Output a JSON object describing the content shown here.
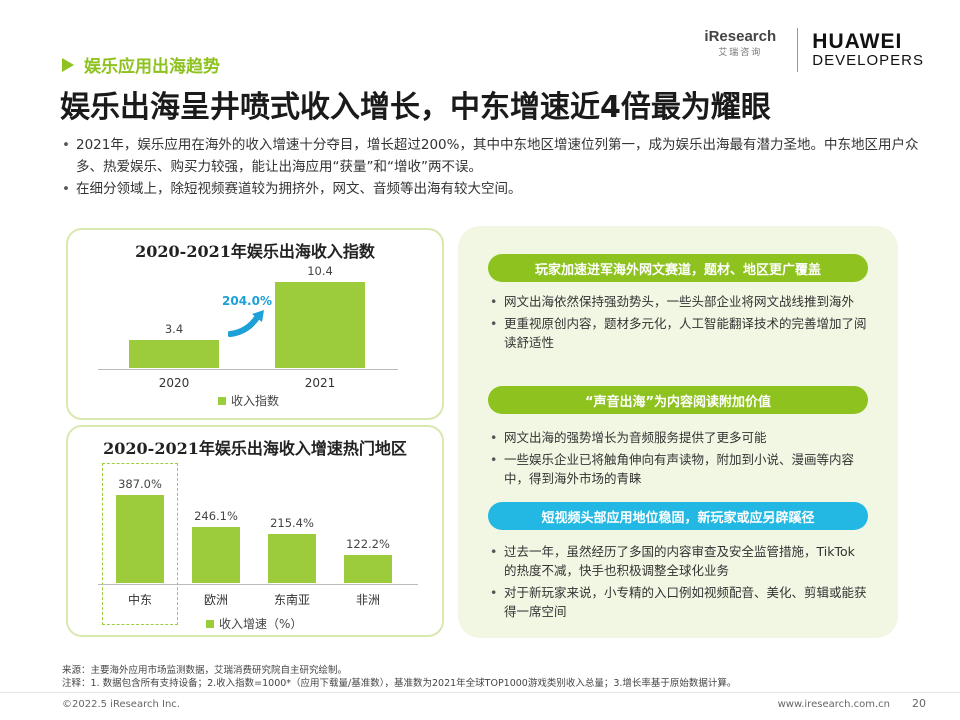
{
  "section": {
    "label": "娱乐应用出海趋势"
  },
  "logos": {
    "iresearch_name": "iResearch",
    "iresearch_sub": "艾瑞咨询",
    "huawei_line1": "HUAWEI",
    "huawei_line2": "DEVELOPERS"
  },
  "title": "娱乐出海呈井喷式收入增长，中东增速近4倍最为耀眼",
  "intro": [
    "2021年，娱乐应用在海外的收入增速十分夺目，增长超过200%，其中中东地区增速位列第一，成为娱乐出海最有潜力圣地。中东地区用户众多、热爱娱乐、购买力较强，能让出海应用“获量”和“增收”两不误。",
    "在细分领域上，除短视频赛道较为拥挤外，网文、音频等出海有较大空间。"
  ],
  "chart_data": [
    {
      "type": "bar",
      "title": "2020-2021年娱乐出海收入指数",
      "categories": [
        "2020",
        "2021"
      ],
      "values": [
        3.4,
        10.4
      ],
      "value_labels": [
        "3.4",
        "10.4"
      ],
      "legend": "收入指数",
      "annotation": "204.0%",
      "ylim": [
        0,
        10.4
      ]
    },
    {
      "type": "bar",
      "title": "2020-2021年娱乐出海收入增速热门地区",
      "categories": [
        "中东",
        "欧洲",
        "东南亚",
        "非洲"
      ],
      "values": [
        387.0,
        246.1,
        215.4,
        122.2
      ],
      "value_labels": [
        "387.0%",
        "246.1%",
        "215.4%",
        "122.2%"
      ],
      "legend": "收入增速（%）",
      "ylim": [
        0,
        387.0
      ]
    }
  ],
  "right_panel": {
    "sections": [
      {
        "heading": "玩家加速进军海外网文赛道，题材、地区更广覆盖",
        "color": "#8dc21f",
        "items": [
          "网文出海依然保持强劲势头，一些头部企业将网文战线推到海外",
          "更重视原创内容，题材多元化，人工智能翻译技术的完善增加了阅读舒适性"
        ]
      },
      {
        "heading": "“声音出海”为内容阅读附加价值",
        "color": "#8dc21f",
        "items": [
          "网文出海的强势增长为音频服务提供了更多可能",
          "一些娱乐企业已将触角伸向有声读物，附加到小说、漫画等内容中，得到海外市场的青睐"
        ]
      },
      {
        "heading": "短视频头部应用地位稳固，新玩家或应另辟蹊径",
        "color": "#22b8e3",
        "items": [
          "过去一年，虽然经历了多国的内容审查及安全监管措施，TikTok 的热度不减，快手也积极调整全球化业务",
          "对于新玩家来说，小专精的入口例如视频配音、美化、剪辑或能获得一席空间"
        ]
      }
    ]
  },
  "notes": {
    "source": "来源：主要海外应用市场监测数据，艾瑞消费研究院自主研究绘制。",
    "note": "注释：1. 数据包含所有支持设备；2.收入指数=1000*（应用下载量/基准数），基准数为2021年全球TOP1000游戏类别收入总量；3.增长率基于原始数据计算。"
  },
  "footer": {
    "copyright": "©2022.5 iResearch Inc.",
    "url": "www.iresearch.com.cn",
    "page": "20"
  }
}
